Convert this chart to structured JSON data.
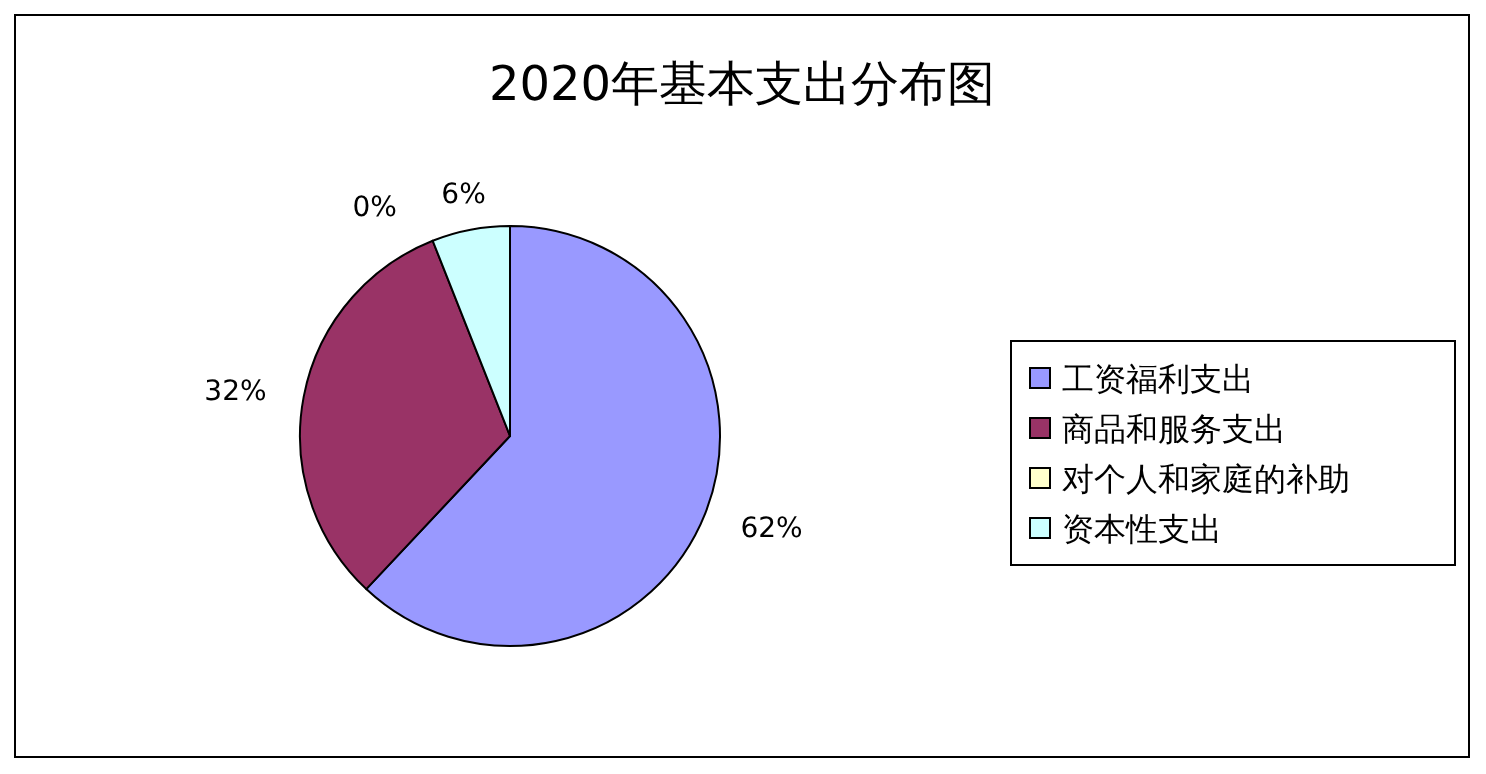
{
  "chart_data": {
    "type": "pie",
    "title": "2020年基本支出分布图",
    "categories": [
      "工资福利支出",
      "商品和服务支出",
      "对个人和家庭的补助",
      "资本性支出"
    ],
    "values": [
      62,
      32,
      0,
      6
    ],
    "value_labels": [
      "62%",
      "32%",
      "0%",
      "6%"
    ],
    "colors": [
      "#9999ff",
      "#993366",
      "#ffffcc",
      "#ccffff"
    ],
    "legend": "right"
  }
}
